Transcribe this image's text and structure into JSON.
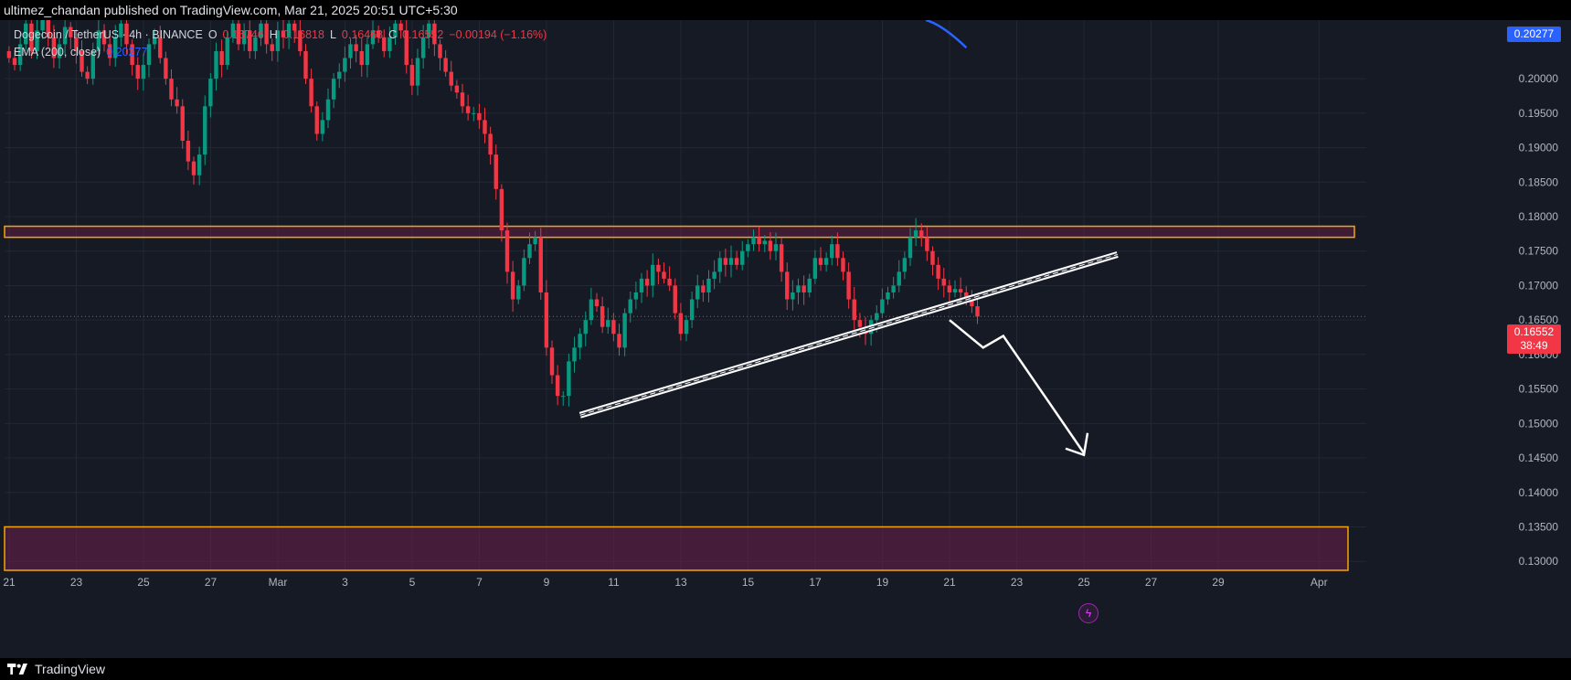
{
  "header": {
    "published_line": "ultimez_chandan published on TradingView.com, Mar 21, 2025 20:51 UTC+5:30"
  },
  "footer": {
    "brand": "TradingView"
  },
  "legend": {
    "symbol": "Dogecoin / TetherUS · 4h · BINANCE",
    "open_label": "O",
    "open_value": "0.16746",
    "high_label": "H",
    "high_value": "0.16818",
    "low_label": "L",
    "low_value": "0.16468",
    "close_label": "C",
    "close_value": "0.16552",
    "change": "−0.00194 (−1.16%)",
    "ema_label": "EMA (200, close)",
    "ema_value": "0.20277"
  },
  "axis_labels": {
    "ema_price": "0.20277",
    "last_price": "0.16552",
    "countdown": "38:49"
  },
  "colors": {
    "background": "#161a25",
    "grid": "#232733",
    "up": "#089981",
    "down": "#f23645",
    "ema": "#2962ff",
    "zone_border": "#f7a600",
    "zone_fill": "#6e1f4a",
    "trend": "#ffffff"
  },
  "chart_data": {
    "type": "candlestick",
    "symbol": "DOGEUSDT",
    "timeframe": "4h",
    "ylim": [
      0.1287,
      0.2085
    ],
    "y_ticks": [
      "0.20000",
      "0.19500",
      "0.19000",
      "0.18500",
      "0.18000",
      "0.17500",
      "0.17000",
      "0.16500",
      "0.16000",
      "0.15500",
      "0.15000",
      "0.14500",
      "0.14000",
      "0.13500",
      "0.13000"
    ],
    "x_ticks": [
      "21",
      "23",
      "25",
      "27",
      "Mar",
      "3",
      "5",
      "7",
      "9",
      "11",
      "13",
      "15",
      "17",
      "19",
      "21",
      "23",
      "25",
      "27",
      "29",
      "Apr"
    ],
    "x_range_days": [
      -8,
      32
    ],
    "last_price": 0.16552,
    "resistance_zone": [
      0.177,
      0.1786
    ],
    "demand_zone": [
      0.1287,
      0.135
    ],
    "rising_trendline": {
      "from": [
        "Mar 10",
        0.1512
      ],
      "to": [
        "Mar 26",
        0.1745
      ]
    },
    "projection_path": [
      [
        "Mar 21",
        0.165
      ],
      [
        "Mar 22",
        0.161
      ],
      [
        "Mar 22.6",
        0.1627
      ],
      [
        "Mar 25",
        0.1457
      ]
    ],
    "closes": [
      0.203,
      0.202,
      0.205,
      0.208,
      0.204,
      0.207,
      0.2085,
      0.206,
      0.203,
      0.205,
      0.2075,
      0.206,
      0.204,
      0.201,
      0.2,
      0.204,
      0.207,
      0.205,
      0.203,
      0.206,
      0.208,
      0.205,
      0.202,
      0.2,
      0.202,
      0.205,
      0.206,
      0.203,
      0.2,
      0.197,
      0.196,
      0.191,
      0.188,
      0.186,
      0.189,
      0.196,
      0.2,
      0.204,
      0.202,
      0.206,
      0.208,
      0.205,
      0.207,
      0.204,
      0.206,
      0.208,
      0.205,
      0.204,
      0.207,
      0.206,
      0.208,
      0.207,
      0.204,
      0.2,
      0.196,
      0.192,
      0.194,
      0.197,
      0.2,
      0.201,
      0.203,
      0.205,
      0.204,
      0.202,
      0.205,
      0.207,
      0.206,
      0.204,
      0.206,
      0.208,
      0.207,
      0.202,
      0.199,
      0.203,
      0.206,
      0.208,
      0.205,
      0.203,
      0.201,
      0.199,
      0.198,
      0.196,
      0.195,
      0.195,
      0.194,
      0.192,
      0.189,
      0.184,
      0.178,
      0.172,
      0.168,
      0.17,
      0.174,
      0.176,
      0.177,
      0.169,
      0.161,
      0.157,
      0.154,
      0.154,
      0.159,
      0.161,
      0.163,
      0.165,
      0.168,
      0.167,
      0.164,
      0.165,
      0.163,
      0.161,
      0.166,
      0.168,
      0.169,
      0.171,
      0.17,
      0.173,
      0.172,
      0.171,
      0.17,
      0.166,
      0.163,
      0.165,
      0.168,
      0.17,
      0.169,
      0.171,
      0.172,
      0.174,
      0.173,
      0.174,
      0.173,
      0.175,
      0.176,
      0.177,
      0.176,
      0.1765,
      0.175,
      0.176,
      0.172,
      0.168,
      0.169,
      0.17,
      0.169,
      0.171,
      0.174,
      0.173,
      0.174,
      0.176,
      0.174,
      0.172,
      0.168,
      0.165,
      0.164,
      0.163,
      0.165,
      0.166,
      0.168,
      0.169,
      0.17,
      0.172,
      0.174,
      0.177,
      0.178,
      0.177,
      0.175,
      0.173,
      0.171,
      0.17,
      0.169,
      0.1695,
      0.169,
      0.168,
      0.167,
      0.1655
    ]
  }
}
